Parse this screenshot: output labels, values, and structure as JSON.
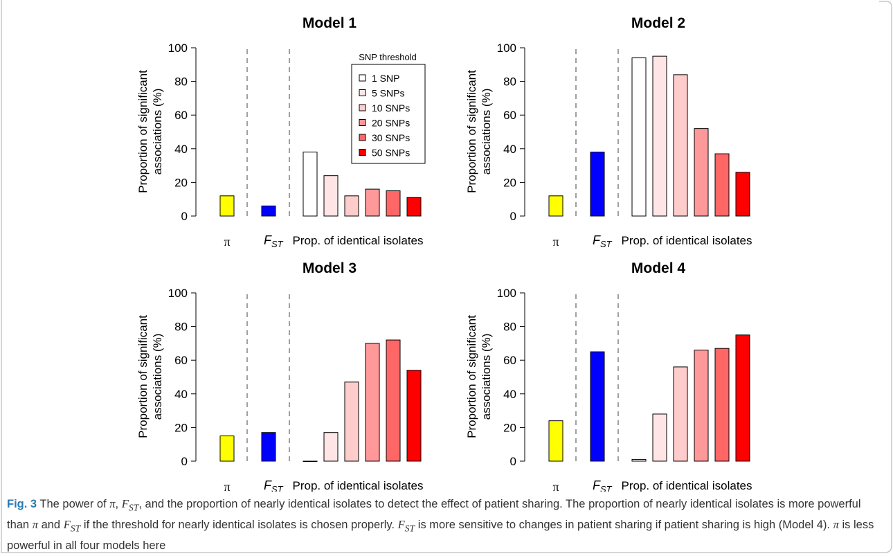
{
  "colors": {
    "pi": "#ffff00",
    "fst": "#0000ff",
    "thresholds": [
      "#ffffff",
      "#ffe5e5",
      "#ffcccc",
      "#ff9999",
      "#ff6666",
      "#ff0000"
    ],
    "divider": "#a0a0a0",
    "frame": "#c8c8c8"
  },
  "chart_data": [
    {
      "type": "bar",
      "title": "Model 1",
      "ylabel_lines": [
        "Proportion of significant",
        "associations (%)"
      ],
      "ylim": [
        0,
        100
      ],
      "yticks": [
        "0",
        "20",
        "40",
        "60",
        "80",
        "100"
      ],
      "group_labels": {
        "pi": "π",
        "fst": "F",
        "fst_sub": "ST",
        "identical": "Prop. of identical isolates"
      },
      "pi": 12,
      "fst": 6,
      "identical": [
        38,
        24,
        12,
        16,
        15,
        11
      ]
    },
    {
      "type": "bar",
      "title": "Model 2",
      "ylabel_lines": [
        "Proportion of significant",
        "associations (%)"
      ],
      "ylim": [
        0,
        100
      ],
      "yticks": [
        "0",
        "20",
        "40",
        "60",
        "80",
        "100"
      ],
      "group_labels": {
        "pi": "π",
        "fst": "F",
        "fst_sub": "ST",
        "identical": "Prop. of identical isolates"
      },
      "pi": 12,
      "fst": 38,
      "identical": [
        94,
        95,
        84,
        52,
        37,
        26
      ]
    },
    {
      "type": "bar",
      "title": "Model 3",
      "ylabel_lines": [
        "Proportion of significant",
        "associations (%)"
      ],
      "ylim": [
        0,
        100
      ],
      "yticks": [
        "0",
        "20",
        "40",
        "60",
        "80",
        "100"
      ],
      "group_labels": {
        "pi": "π",
        "fst": "F",
        "fst_sub": "ST",
        "identical": "Prop. of identical isolates"
      },
      "pi": 15,
      "fst": 17,
      "identical": [
        0,
        17,
        47,
        70,
        72,
        54
      ]
    },
    {
      "type": "bar",
      "title": "Model 4",
      "ylabel_lines": [
        "Proportion of significant",
        "associations (%)"
      ],
      "ylim": [
        0,
        100
      ],
      "yticks": [
        "0",
        "20",
        "40",
        "60",
        "80",
        "100"
      ],
      "group_labels": {
        "pi": "π",
        "fst": "F",
        "fst_sub": "ST",
        "identical": "Prop. of identical isolates"
      },
      "pi": 24,
      "fst": 65,
      "identical": [
        1,
        28,
        56,
        66,
        67,
        75
      ]
    }
  ],
  "legend": {
    "title": "SNP threshold",
    "entries": [
      "1 SNP",
      "5 SNPs",
      "10 SNPs",
      "20 SNPs",
      "30 SNPs",
      "50 SNPs"
    ]
  },
  "caption": {
    "label": "Fig. 3",
    "part1": " The power of ",
    "pi1": "π",
    "sep1": ", ",
    "fst1": "F",
    "fst1_sub": "ST",
    "part2": ", and the proportion of nearly identical isolates to detect the effect of patient sharing. The proportion of nearly identical isolates is more powerful than ",
    "pi2": "π",
    "part3": " and ",
    "fst2": "F",
    "fst2_sub": "ST",
    "part4": " if the threshold for nearly identical isolates is chosen properly. ",
    "fst3": "F",
    "fst3_sub": "ST",
    "part5": " is more sensitive to changes in patient sharing if patient sharing is high (Model 4). ",
    "pi3": "π",
    "part6": " is less powerful in all four models here"
  }
}
